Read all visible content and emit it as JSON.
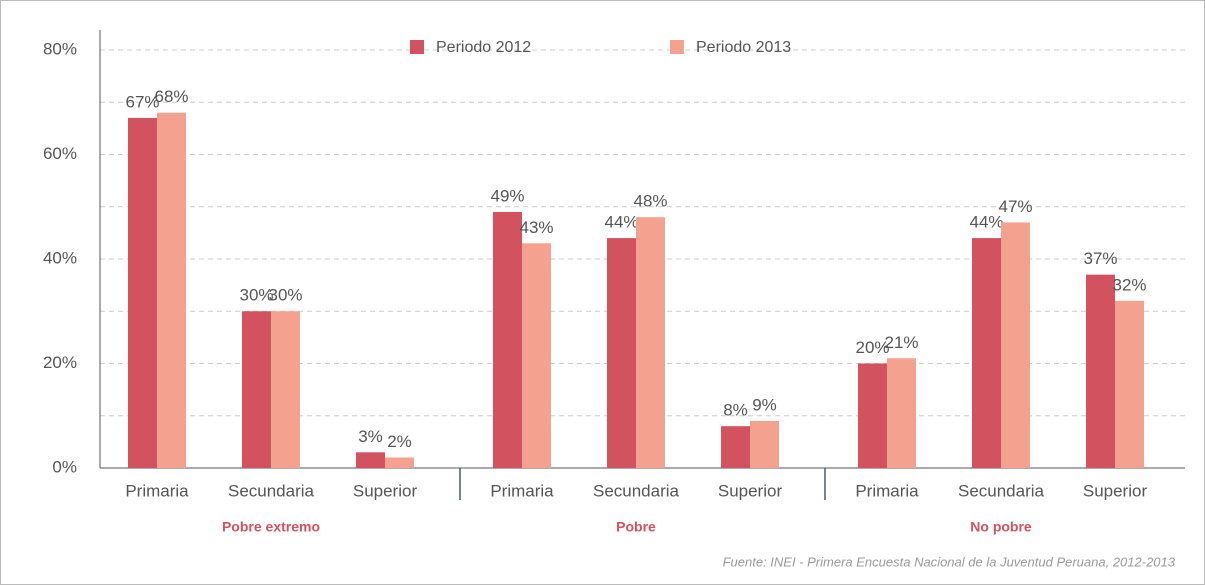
{
  "chart_data": {
    "type": "bar",
    "categories": [
      "Primaria",
      "Secundaria",
      "Superior",
      "Primaria",
      "Secundaria",
      "Superior",
      "Primaria",
      "Secundaria",
      "Superior"
    ],
    "groups": [
      "Pobre extremo",
      "Pobre",
      "No pobre"
    ],
    "series": [
      {
        "name": "Periodo 2012",
        "color": "#d3525f",
        "values": [
          67,
          30,
          3,
          49,
          44,
          8,
          20,
          44,
          37
        ],
        "value_labels": [
          "67%",
          "30%",
          "3%",
          "49%",
          "44%",
          "8%",
          "20%",
          "44%",
          "37%"
        ]
      },
      {
        "name": "Periodo 2013",
        "color": "#f4a18f",
        "values": [
          68,
          30,
          2,
          43,
          48,
          9,
          21,
          47,
          32
        ],
        "value_labels": [
          "68%",
          "30%",
          "2%",
          "43%",
          "48%",
          "9%",
          "21%",
          "47%",
          "32%"
        ]
      }
    ],
    "ylim": [
      0,
      80
    ],
    "yticks": [
      {
        "value": 0,
        "label": "0%"
      },
      {
        "value": 20,
        "label": "20%"
      },
      {
        "value": 40,
        "label": "40%"
      },
      {
        "value": 60,
        "label": "60%"
      },
      {
        "value": 80,
        "label": "80%"
      }
    ],
    "minor_yticks": [
      10,
      30,
      50,
      70
    ],
    "grid": true,
    "legend": "top",
    "source": "Fuente: INEI - Primera Encuesta Nacional de la Juventud Peruana, 2012-2013"
  }
}
